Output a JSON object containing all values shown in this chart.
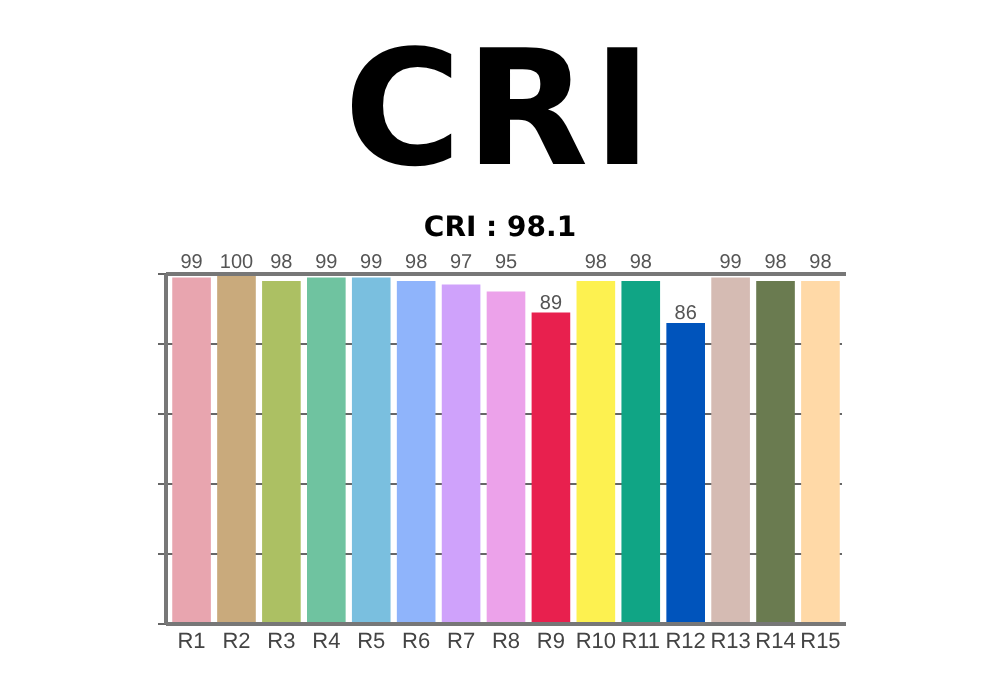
{
  "chart_data": {
    "type": "bar",
    "title": "CRI",
    "subtitle": "CRI : 98.1",
    "categories": [
      "R1",
      "R2",
      "R3",
      "R4",
      "R5",
      "R6",
      "R7",
      "R8",
      "R9",
      "R10",
      "R11",
      "R12",
      "R13",
      "R14",
      "R15"
    ],
    "values": [
      99,
      100,
      98,
      99,
      99,
      98,
      97,
      95,
      89,
      98,
      98,
      86,
      99,
      98,
      98
    ],
    "colors": [
      "#e8a5af",
      "#c9aa7c",
      "#acc063",
      "#6fc3a0",
      "#7abfdf",
      "#8fb4fb",
      "#cfa2fb",
      "#eca2ea",
      "#e8204e",
      "#fdf150",
      "#10a585",
      "#0054bc",
      "#d5bbb3",
      "#6a7b50",
      "#ffd9a7"
    ],
    "ylim": [
      0,
      100
    ],
    "yticks": [
      {
        "value": 0,
        "label": null
      },
      {
        "value": 20,
        "label": null
      },
      {
        "value": 40,
        "label": null
      },
      {
        "value": 60,
        "label": null
      },
      {
        "value": 80,
        "label": null
      },
      {
        "value": 100,
        "label": null
      }
    ],
    "grid": "y",
    "data_labels": true
  }
}
